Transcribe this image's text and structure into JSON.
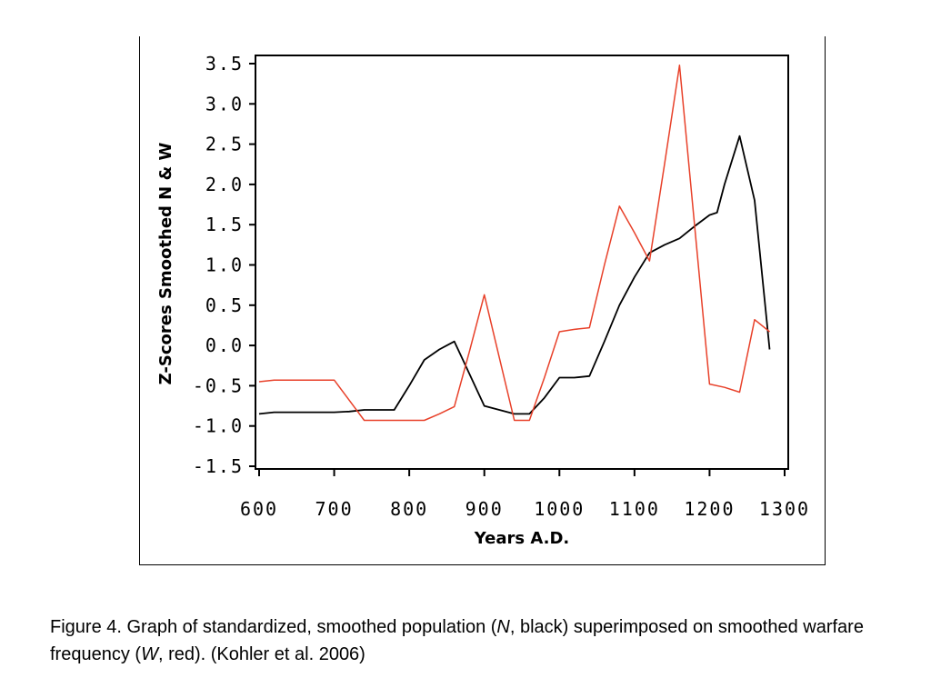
{
  "chart_data": {
    "type": "line",
    "title": "",
    "xlabel": "Years A.D.",
    "ylabel": "Z-Scores Smoothed N & W",
    "xlim": [
      600,
      1300
    ],
    "ylim": [
      -1.5,
      3.5
    ],
    "x_ticks": [
      600,
      700,
      800,
      900,
      1000,
      1100,
      1200,
      1300
    ],
    "x_tick_labels": [
      "600",
      "700",
      "800",
      "900",
      "1000",
      "1100",
      "1200",
      "1300"
    ],
    "y_ticks": [
      3.5,
      3.0,
      2.5,
      2.0,
      1.5,
      1.0,
      0.5,
      0.0,
      -0.5,
      -1.0,
      -1.5
    ],
    "y_tick_labels": [
      "3.5",
      "3.0",
      "2.5",
      "2.0",
      "1.5",
      "1.0",
      "0.5",
      "0.0",
      "-0.5",
      "-1.0",
      "-1.5"
    ],
    "grid": false,
    "series": [
      {
        "color": "#000000",
        "x": [
          600,
          620,
          640,
          660,
          680,
          700,
          720,
          740,
          760,
          780,
          800,
          820,
          840,
          860,
          880,
          900,
          920,
          940,
          960,
          980,
          1000,
          1020,
          1040,
          1060,
          1080,
          1100,
          1120,
          1140,
          1160,
          1180,
          1200,
          1210,
          1220,
          1240,
          1260,
          1280
        ],
        "values": [
          -0.85,
          -0.83,
          -0.83,
          -0.83,
          -0.83,
          -0.83,
          -0.82,
          -0.8,
          -0.8,
          -0.8,
          -0.5,
          -0.18,
          -0.05,
          0.05,
          -0.35,
          -0.75,
          -0.8,
          -0.85,
          -0.85,
          -0.65,
          -0.4,
          -0.4,
          -0.38,
          0.05,
          0.5,
          0.85,
          1.15,
          1.25,
          1.33,
          1.48,
          1.62,
          1.65,
          2.0,
          2.6,
          1.8,
          -0.05
        ]
      },
      {
        "color": "#e8412a",
        "x": [
          600,
          620,
          640,
          660,
          680,
          700,
          720,
          740,
          760,
          780,
          800,
          820,
          840,
          860,
          880,
          900,
          920,
          940,
          960,
          980,
          1000,
          1020,
          1040,
          1060,
          1080,
          1100,
          1120,
          1140,
          1160,
          1180,
          1200,
          1220,
          1240,
          1260,
          1280
        ],
        "values": [
          -0.45,
          -0.43,
          -0.43,
          -0.43,
          -0.43,
          -0.43,
          -0.68,
          -0.93,
          -0.93,
          -0.93,
          -0.93,
          -0.93,
          -0.85,
          -0.76,
          -0.08,
          0.63,
          -0.15,
          -0.93,
          -0.93,
          -0.4,
          0.17,
          0.2,
          0.22,
          1.0,
          1.73,
          1.4,
          1.05,
          2.25,
          3.48,
          1.5,
          -0.48,
          -0.52,
          -0.58,
          0.32,
          0.17
        ]
      }
    ]
  },
  "caption": {
    "prefix": "Figure 4. Graph of standardized, smoothed population (",
    "n_symbol": "N",
    "middle": ", black) superimposed on smoothed warfare frequency (",
    "w_symbol": "W",
    "suffix": ", red). (Kohler et al. 2006)"
  }
}
